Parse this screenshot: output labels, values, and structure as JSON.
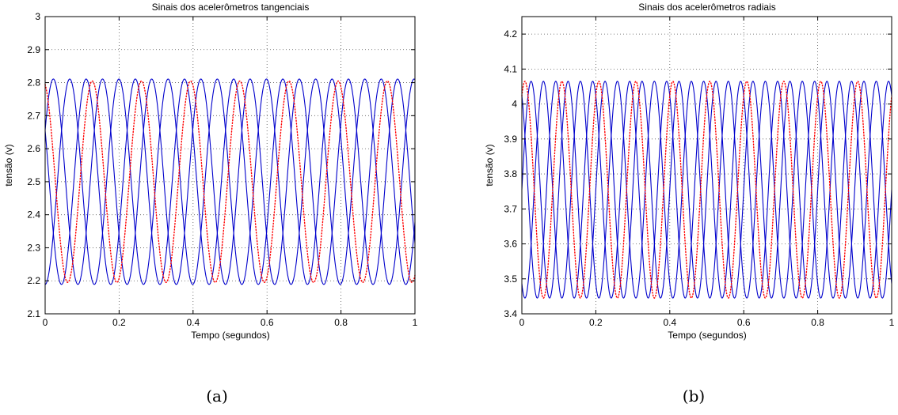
{
  "chart_data": [
    {
      "type": "line",
      "title": "Sinais dos acelerômetros tangenciais",
      "xlabel": "Tempo (segundos)",
      "ylabel": "tensão (v)",
      "caption": "(a)",
      "xlim": [
        0,
        1
      ],
      "ylim": [
        2.1,
        3.0
      ],
      "xticks": [
        "0",
        "0.2",
        "0.4",
        "0.6",
        "0.8",
        "1"
      ],
      "yticks": [
        "2.1",
        "2.2",
        "2.3",
        "2.4",
        "2.5",
        "2.6",
        "2.7",
        "2.8",
        "2.9",
        "3"
      ],
      "grid": true,
      "series": [
        {
          "style": "solid",
          "color": "#0000cc",
          "offset": 2.5,
          "amplitude": 0.311,
          "period": 0.133,
          "phase_deg": 30
        },
        {
          "style": "solid",
          "color": "#0000cc",
          "offset": 2.5,
          "amplitude": 0.311,
          "period": 0.133,
          "phase_deg": 150
        },
        {
          "style": "solid",
          "color": "#0000cc",
          "offset": 2.5,
          "amplitude": 0.311,
          "period": 0.133,
          "phase_deg": 270
        },
        {
          "style": "dotted",
          "color": "#ff0000",
          "offset": 2.5,
          "amplitude": 0.305,
          "period": 0.133,
          "phase_deg": 105
        }
      ]
    },
    {
      "type": "line",
      "title": "Sinais dos acelerômetros radiais",
      "xlabel": "Tempo (segundos)",
      "ylabel": "tensão (v)",
      "caption": "(b)",
      "xlim": [
        0,
        1
      ],
      "ylim": [
        3.4,
        4.25
      ],
      "xticks": [
        "0",
        "0.2",
        "0.4",
        "0.6",
        "0.8",
        "1"
      ],
      "yticks": [
        "3.4",
        "3.5",
        "3.6",
        "3.7",
        "3.8",
        "3.9",
        "4",
        "4.1",
        "4.2"
      ],
      "grid": true,
      "series": [
        {
          "style": "solid",
          "color": "#0000cc",
          "offset": 3.755,
          "amplitude": 0.31,
          "period": 0.1,
          "phase_deg": 0
        },
        {
          "style": "solid",
          "color": "#0000cc",
          "offset": 3.755,
          "amplitude": 0.31,
          "period": 0.1,
          "phase_deg": 120
        },
        {
          "style": "solid",
          "color": "#0000cc",
          "offset": 3.755,
          "amplitude": 0.31,
          "period": 0.1,
          "phase_deg": 240
        },
        {
          "style": "dotted",
          "color": "#ff0000",
          "offset": 3.755,
          "amplitude": 0.31,
          "period": 0.1,
          "phase_deg": 60
        }
      ]
    }
  ]
}
